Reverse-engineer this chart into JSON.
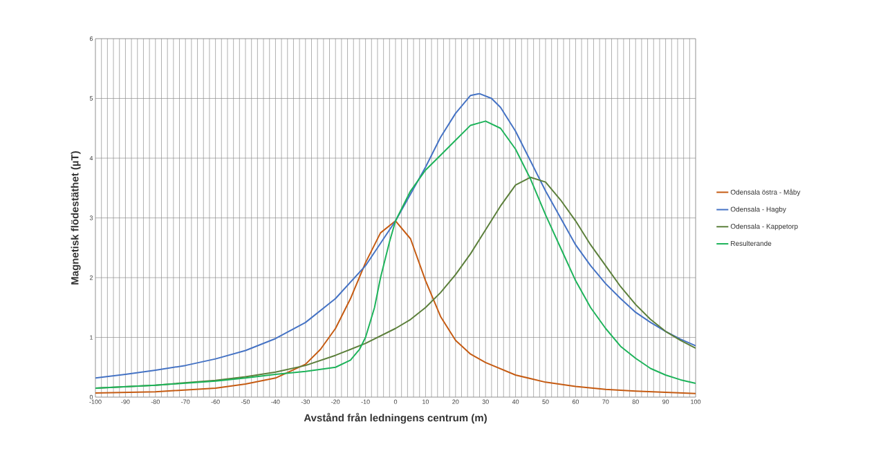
{
  "chart_data": {
    "type": "line",
    "xlabel": "Avstånd från ledningens centrum (m)",
    "ylabel": "Magnetisk flödestäthet (µT)",
    "xlim": [
      -100,
      100
    ],
    "ylim": [
      0,
      6
    ],
    "xticks": [
      -100,
      -90,
      -80,
      -70,
      -60,
      -50,
      -40,
      -30,
      -20,
      -10,
      0,
      10,
      20,
      30,
      40,
      50,
      60,
      70,
      80,
      90,
      100
    ],
    "yticks": [
      0,
      1,
      2,
      3,
      4,
      5,
      6
    ],
    "grid": true,
    "legend": "right",
    "marker": "none",
    "line_style": "solid",
    "series": [
      {
        "name": "Odensala östra - Måby",
        "color": "#c55a11",
        "x": [
          -100,
          -80,
          -60,
          -50,
          -40,
          -30,
          -25,
          -20,
          -15,
          -10,
          -5,
          0,
          5,
          10,
          15,
          20,
          25,
          30,
          40,
          50,
          60,
          70,
          80,
          90,
          100
        ],
        "values": [
          0.07,
          0.09,
          0.15,
          0.22,
          0.32,
          0.55,
          0.8,
          1.15,
          1.65,
          2.25,
          2.75,
          2.95,
          2.65,
          1.95,
          1.35,
          0.95,
          0.72,
          0.58,
          0.37,
          0.25,
          0.18,
          0.13,
          0.1,
          0.08,
          0.06
        ]
      },
      {
        "name": "Odensala - Hagby",
        "color": "#4472c4",
        "x": [
          -100,
          -90,
          -80,
          -70,
          -60,
          -50,
          -40,
          -30,
          -20,
          -10,
          0,
          5,
          10,
          15,
          20,
          25,
          28,
          32,
          35,
          40,
          45,
          50,
          55,
          60,
          65,
          70,
          75,
          80,
          85,
          90,
          95,
          100
        ],
        "values": [
          0.32,
          0.38,
          0.45,
          0.53,
          0.64,
          0.78,
          0.98,
          1.25,
          1.65,
          2.2,
          2.95,
          3.4,
          3.85,
          4.35,
          4.75,
          5.05,
          5.08,
          5.0,
          4.85,
          4.45,
          3.95,
          3.45,
          3.0,
          2.55,
          2.2,
          1.9,
          1.65,
          1.42,
          1.25,
          1.1,
          0.97,
          0.86
        ]
      },
      {
        "name": "Odensala - Kappetorp",
        "color": "#5b7f3a",
        "x": [
          -100,
          -80,
          -60,
          -50,
          -40,
          -30,
          -20,
          -10,
          0,
          5,
          10,
          15,
          20,
          25,
          30,
          35,
          40,
          45,
          50,
          55,
          60,
          65,
          70,
          75,
          80,
          85,
          90,
          95,
          100
        ],
        "values": [
          0.15,
          0.2,
          0.28,
          0.34,
          0.42,
          0.53,
          0.7,
          0.9,
          1.15,
          1.3,
          1.5,
          1.75,
          2.05,
          2.4,
          2.8,
          3.2,
          3.55,
          3.68,
          3.6,
          3.3,
          2.95,
          2.55,
          2.2,
          1.85,
          1.55,
          1.3,
          1.1,
          0.95,
          0.82
        ]
      },
      {
        "name": "Resulterande",
        "color": "#1db35a",
        "x": [
          -100,
          -80,
          -60,
          -50,
          -40,
          -30,
          -20,
          -15,
          -12,
          -10,
          -7,
          -5,
          -2,
          0,
          5,
          10,
          15,
          20,
          25,
          30,
          35,
          40,
          45,
          50,
          55,
          60,
          65,
          70,
          75,
          80,
          85,
          90,
          95,
          100
        ],
        "values": [
          0.15,
          0.2,
          0.27,
          0.32,
          0.38,
          0.43,
          0.5,
          0.62,
          0.8,
          1.0,
          1.5,
          2.0,
          2.6,
          2.95,
          3.45,
          3.8,
          4.05,
          4.3,
          4.55,
          4.62,
          4.5,
          4.15,
          3.65,
          3.05,
          2.5,
          1.95,
          1.5,
          1.15,
          0.85,
          0.65,
          0.48,
          0.37,
          0.29,
          0.23
        ]
      }
    ]
  }
}
